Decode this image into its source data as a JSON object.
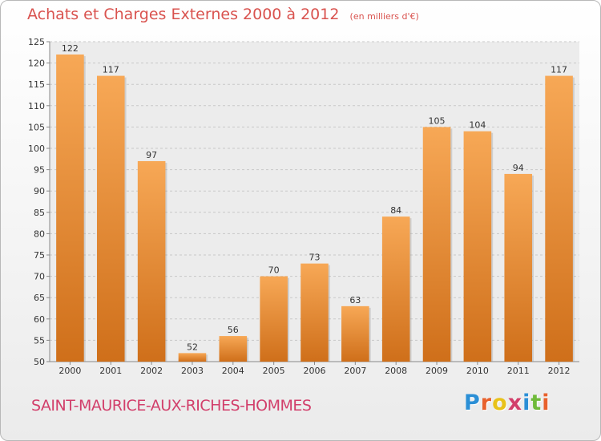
{
  "header": {
    "title": "Achats et Charges Externes 2000 à 2012",
    "unit_note": "(en milliers d'€)"
  },
  "footer": {
    "city": "SAINT-MAURICE-AUX-RICHES-HOMMES",
    "brand_letters": [
      "P",
      "r",
      "o",
      "x",
      "i",
      "t",
      "i"
    ],
    "brand_colors": [
      "#2b8fd6",
      "#e8612c",
      "#e8c21a",
      "#d23f6b",
      "#2b8fd6",
      "#6fba3a",
      "#e8612c"
    ]
  },
  "colors": {
    "title": "#d9534f",
    "bar_top": "#f7a856",
    "bar_bottom": "#cf6f1a"
  },
  "chart_data": {
    "type": "bar",
    "categories": [
      "2000",
      "2001",
      "2002",
      "2003",
      "2004",
      "2005",
      "2006",
      "2007",
      "2008",
      "2009",
      "2010",
      "2011",
      "2012"
    ],
    "values": [
      122,
      117,
      97,
      52,
      56,
      70,
      73,
      63,
      84,
      105,
      104,
      94,
      117
    ],
    "data_labels": [
      "122",
      "117",
      "97",
      "52",
      "56",
      "70",
      "73",
      "63",
      "84",
      "105",
      "104",
      "94",
      "117"
    ],
    "yticks": [
      50,
      55,
      60,
      65,
      70,
      75,
      80,
      85,
      90,
      95,
      100,
      105,
      110,
      115,
      120,
      125
    ],
    "ylim": [
      50,
      125
    ],
    "grid": true,
    "legend": "none"
  }
}
